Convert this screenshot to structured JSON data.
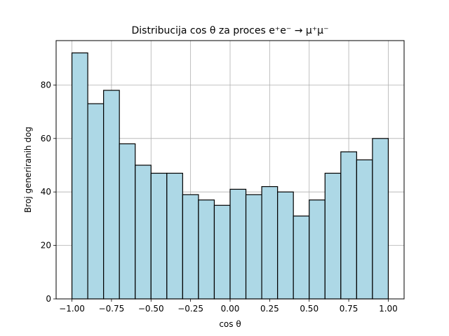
{
  "chart_data": {
    "type": "bar",
    "title": "Distribucija cos θ za proces e⁺e⁻ → μ⁺μ⁻",
    "xlabel": "cos θ",
    "ylabel": "Broj generiranih dog",
    "bin_edges": [
      -1.0,
      -0.9,
      -0.8,
      -0.7,
      -0.6,
      -0.5,
      -0.4,
      -0.3,
      -0.2,
      -0.1,
      0.0,
      0.1,
      0.2,
      0.3,
      0.4,
      0.5,
      0.6,
      0.7,
      0.8,
      0.9,
      1.0
    ],
    "values": [
      92,
      73,
      78,
      58,
      50,
      47,
      47,
      39,
      37,
      35,
      41,
      39,
      42,
      40,
      31,
      37,
      47,
      55,
      52,
      60
    ],
    "xlim": [
      -1.1,
      1.1
    ],
    "ylim": [
      0,
      96.6
    ],
    "xticks": [
      -1.0,
      -0.75,
      -0.5,
      -0.25,
      0.0,
      0.25,
      0.5,
      0.75,
      1.0
    ],
    "xtick_labels": [
      "−1.00",
      "−0.75",
      "−0.50",
      "−0.25",
      "0.00",
      "0.25",
      "0.50",
      "0.75",
      "1.00"
    ],
    "yticks": [
      0,
      20,
      40,
      60,
      80
    ],
    "ytick_labels": [
      "0",
      "20",
      "40",
      "60",
      "80"
    ],
    "grid": true,
    "legend": "none",
    "colors": {
      "bar_fill": "#add8e6",
      "bar_edge": "#000000",
      "grid": "#b0b0b0"
    }
  }
}
